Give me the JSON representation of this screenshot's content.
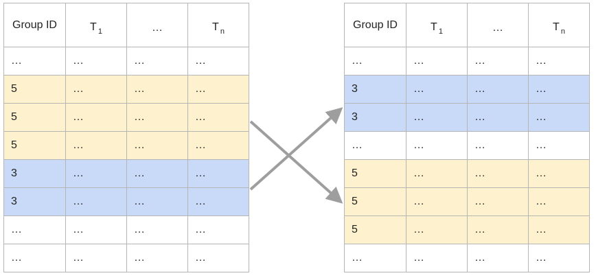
{
  "header": {
    "group_id": "Group ID",
    "t_letter": "T",
    "t1_sub": "1",
    "mid": "…",
    "tn_sub": "n"
  },
  "left_table": {
    "rows": [
      {
        "highlight": "none",
        "cells": [
          "…",
          "…",
          "…",
          "…"
        ]
      },
      {
        "highlight": "yellow",
        "cells": [
          "5",
          "…",
          "…",
          "…"
        ]
      },
      {
        "highlight": "yellow",
        "cells": [
          "5",
          "…",
          "…",
          "…"
        ]
      },
      {
        "highlight": "yellow",
        "cells": [
          "5",
          "…",
          "…",
          "…"
        ]
      },
      {
        "highlight": "blue",
        "cells": [
          "3",
          "…",
          "…",
          "…"
        ]
      },
      {
        "highlight": "blue",
        "cells": [
          "3",
          "…",
          "…",
          "…"
        ]
      },
      {
        "highlight": "none",
        "cells": [
          "…",
          "…",
          "…",
          "…"
        ]
      },
      {
        "highlight": "none",
        "cells": [
          "…",
          "…",
          "…",
          "…"
        ]
      }
    ]
  },
  "right_table": {
    "rows": [
      {
        "highlight": "none",
        "cells": [
          "…",
          "…",
          "…",
          "…"
        ]
      },
      {
        "highlight": "blue",
        "cells": [
          "3",
          "…",
          "…",
          "…"
        ]
      },
      {
        "highlight": "blue",
        "cells": [
          "3",
          "…",
          "…",
          "…"
        ]
      },
      {
        "highlight": "none",
        "cells": [
          "…",
          "…",
          "…",
          "…"
        ]
      },
      {
        "highlight": "yellow",
        "cells": [
          "5",
          "…",
          "…",
          "…"
        ]
      },
      {
        "highlight": "yellow",
        "cells": [
          "5",
          "…",
          "…",
          "…"
        ]
      },
      {
        "highlight": "yellow",
        "cells": [
          "5",
          "…",
          "…",
          "…"
        ]
      },
      {
        "highlight": "none",
        "cells": [
          "…",
          "…",
          "…",
          "…"
        ]
      }
    ]
  },
  "colors": {
    "yellow": "#fdf2cd",
    "blue": "#c9daf8",
    "border": "#b5b5b5",
    "arrow": "#9e9e9e"
  },
  "arrows": {
    "icon": "crossing-arrows",
    "meaning": [
      "yellow-block-to-lower-position",
      "blue-block-to-upper-position"
    ]
  }
}
